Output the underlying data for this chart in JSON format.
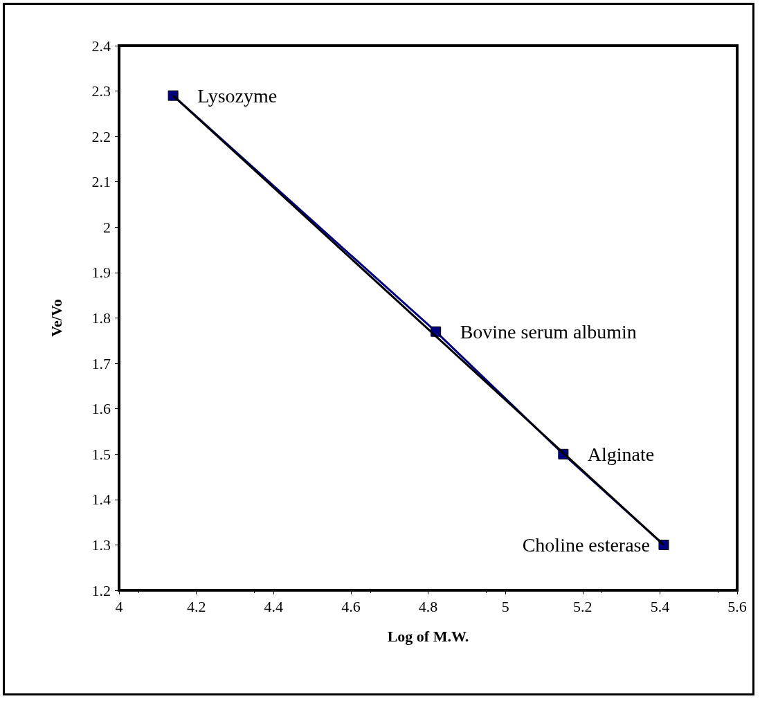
{
  "chart_data": {
    "type": "line",
    "xlabel": "Log of M.W.",
    "ylabel": "Ve/Vo",
    "xlim": [
      4,
      5.6
    ],
    "xticks": [
      4,
      4.2,
      4.4,
      4.6,
      4.8,
      5,
      5.2,
      5.4,
      5.6
    ],
    "ylim": [
      1.2,
      2.4
    ],
    "yticks": [
      1.2,
      1.3,
      1.4,
      1.5,
      1.6,
      1.7,
      1.8,
      1.9,
      2,
      2.1,
      2.2,
      2.3,
      2.4
    ],
    "series": [
      {
        "color": "#000080",
        "marker": "square",
        "x": [
          4.14,
          4.82,
          5.15,
          5.41
        ],
        "values": [
          2.29,
          1.77,
          1.5,
          1.3
        ]
      },
      {
        "color": "#000000",
        "marker": "none",
        "x": [
          4.14,
          5.41
        ],
        "values": [
          2.29,
          1.3
        ]
      }
    ],
    "annotations": [
      {
        "text": "Lysozyme",
        "x": 4.14,
        "y": 2.29
      },
      {
        "text": "Bovine serum albumin",
        "x": 4.82,
        "y": 1.77
      },
      {
        "text": "Alginate",
        "x": 5.15,
        "y": 1.5
      },
      {
        "text": "Choline esterase",
        "x": 5.41,
        "y": 1.3
      }
    ],
    "grid": false
  }
}
